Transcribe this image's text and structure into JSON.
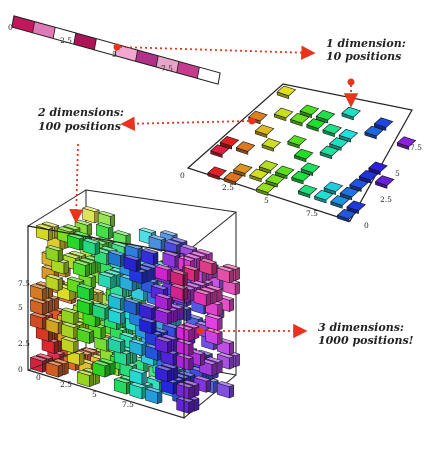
{
  "labels": {
    "d1_line1": "1 dimension:",
    "d1_line2": "10 positions",
    "d2_line1": "2 dimensions:",
    "d2_line2": "100 positions",
    "d3_line1": "3 dimensions:",
    "d3_line2": "1000 positions!"
  },
  "ticks": {
    "strip": [
      "0",
      "2.5",
      "5",
      "7.5"
    ],
    "grid_x": [
      "0",
      "2.5",
      "5",
      "7.5"
    ],
    "grid_y": [
      "0",
      "2.5",
      "5",
      "7.5"
    ],
    "cube_x": [
      "0",
      "2.5",
      "5",
      "7.5"
    ],
    "cube_y": [
      "0",
      "2.5",
      "5",
      "7.5"
    ]
  },
  "colors": {
    "arrow": "#e8341c",
    "frame": "#222222",
    "strip_filled": [
      "#c2185b",
      "#e07ab5",
      "#ad1457",
      "#f3a6cf",
      "#b0308a",
      "#e6a4c8",
      "#c43c8e"
    ]
  }
}
